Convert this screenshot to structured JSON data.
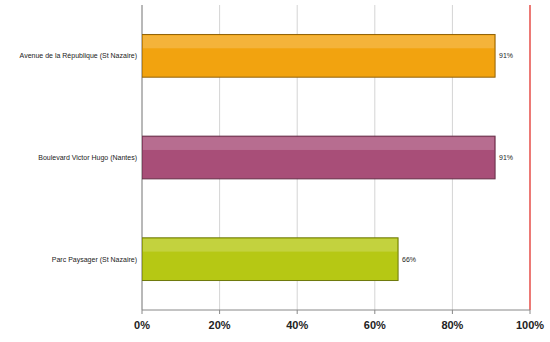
{
  "chart_data": {
    "type": "bar",
    "orientation": "horizontal",
    "categories": [
      "Avenue de la République (St Nazaire)",
      "Boulevard Victor Hugo (Nantes)",
      "Parc Paysager (St Nazaire)"
    ],
    "values": [
      91,
      91,
      66
    ],
    "value_labels": [
      "91%",
      "91%",
      "66%"
    ],
    "colors": [
      "#f2a30f",
      "#a84e78",
      "#b6c814"
    ],
    "xlim": [
      0,
      100
    ],
    "xticks": [
      {
        "value": 0,
        "label": "0%"
      },
      {
        "value": 20,
        "label": "20%"
      },
      {
        "value": 40,
        "label": "40%"
      },
      {
        "value": 60,
        "label": "60%"
      },
      {
        "value": 80,
        "label": "80%"
      },
      {
        "value": 100,
        "label": "100%"
      }
    ],
    "grid": true,
    "data_labels": true
  }
}
